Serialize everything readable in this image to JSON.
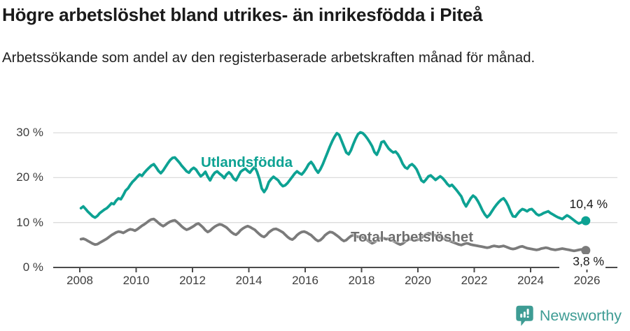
{
  "header": {
    "title": "Högre arbetslöshet bland utrikes- än inrikesfödda i Piteå",
    "subtitle": "Arbetssökande som andel av den registerbaserade arbetskraften månad för månad."
  },
  "footer": {
    "brand": "Newsworthy",
    "brand_color": "#3E9C94",
    "logo_icon": "bar-chart-speech-bubble"
  },
  "chart_data": {
    "type": "line",
    "title": "Högre arbetslöshet bland utrikes- än inrikesfödda i Piteå",
    "subtitle": "Arbetssökande som andel av den registerbaserade arbetskraften månad för månad.",
    "xlabel": "",
    "ylabel": "",
    "grid": "horizontal",
    "legend_position": "inline-labels-on-lines",
    "x_start_year": 2008,
    "frequency": "monthly",
    "xlim": [
      2007.1,
      2027.1
    ],
    "ylim": [
      0,
      32
    ],
    "x_ticks": [
      2008,
      2010,
      2012,
      2014,
      2016,
      2018,
      2020,
      2022,
      2024,
      2026
    ],
    "y_ticks": [
      {
        "value": 0,
        "label": "0 %"
      },
      {
        "value": 10,
        "label": "10 %"
      },
      {
        "value": 20,
        "label": "20 %"
      },
      {
        "value": 30,
        "label": "30 %"
      }
    ],
    "series": [
      {
        "id": "utlandsfodda",
        "name": "Utlandsfödda",
        "color": "#0da293",
        "end_label": "10,4 %",
        "end_value": 10.4,
        "values": [
          13.2,
          13.6,
          13.0,
          12.4,
          11.9,
          11.4,
          11.1,
          11.5,
          12.1,
          12.5,
          12.9,
          13.2,
          13.7,
          14.3,
          14.1,
          14.9,
          15.4,
          15.2,
          16.1,
          17.1,
          17.6,
          18.4,
          19.1,
          19.6,
          20.2,
          20.7,
          20.4,
          21.1,
          21.7,
          22.2,
          22.7,
          23.0,
          22.3,
          21.5,
          21.0,
          21.6,
          22.4,
          23.2,
          23.9,
          24.4,
          24.5,
          23.9,
          23.3,
          22.6,
          22.0,
          21.4,
          21.1,
          21.8,
          22.2,
          21.8,
          21.0,
          20.3,
          20.7,
          21.3,
          20.2,
          19.4,
          20.4,
          21.1,
          21.4,
          20.9,
          20.5,
          19.9,
          20.7,
          21.2,
          20.7,
          19.8,
          19.4,
          20.3,
          21.3,
          21.7,
          22.0,
          21.5,
          21.1,
          21.8,
          22.4,
          21.3,
          19.7,
          17.6,
          16.8,
          17.6,
          19.0,
          19.7,
          20.2,
          19.8,
          19.4,
          18.6,
          18.1,
          18.3,
          18.8,
          19.5,
          20.2,
          20.9,
          21.4,
          21.0,
          20.7,
          21.3,
          22.1,
          23.0,
          23.5,
          22.8,
          21.8,
          21.1,
          21.9,
          23.0,
          24.3,
          25.6,
          26.9,
          28.1,
          29.1,
          29.9,
          29.5,
          28.2,
          26.9,
          25.6,
          25.2,
          26.1,
          27.5,
          28.7,
          29.7,
          30.1,
          29.9,
          29.4,
          28.7,
          27.9,
          27.0,
          25.7,
          25.1,
          26.3,
          27.9,
          28.1,
          27.3,
          26.5,
          26.0,
          25.6,
          25.8,
          25.2,
          24.3,
          23.1,
          22.3,
          22.0,
          22.7,
          23.0,
          22.5,
          21.8,
          20.6,
          19.4,
          19.0,
          19.6,
          20.3,
          20.5,
          20.0,
          19.5,
          19.9,
          20.3,
          19.9,
          19.3,
          18.6,
          18.1,
          18.4,
          17.8,
          17.2,
          16.5,
          15.8,
          14.5,
          13.6,
          14.5,
          15.4,
          16.0,
          15.6,
          14.8,
          13.8,
          12.7,
          11.8,
          11.2,
          11.7,
          12.5,
          13.3,
          14.0,
          14.6,
          15.1,
          15.4,
          14.7,
          13.7,
          12.4,
          11.4,
          11.3,
          12.0,
          12.6,
          13.0,
          12.8,
          12.5,
          12.9,
          13.0,
          12.5,
          11.9,
          11.6,
          11.8,
          12.1,
          12.3,
          12.5,
          12.1,
          11.8,
          11.5,
          11.2,
          11.0,
          10.8,
          11.2,
          11.6,
          11.3,
          10.9,
          10.5,
          10.1,
          9.8,
          10.0,
          10.2,
          10.4
        ]
      },
      {
        "id": "total",
        "name": "Total arbetslöshet",
        "color": "#7b7b7b",
        "end_label": "3,8 %",
        "end_value": 3.8,
        "values": [
          6.3,
          6.4,
          6.2,
          5.9,
          5.6,
          5.3,
          5.1,
          5.2,
          5.5,
          5.8,
          6.1,
          6.4,
          6.8,
          7.2,
          7.5,
          7.8,
          8.0,
          7.9,
          7.7,
          8.0,
          8.3,
          8.5,
          8.4,
          8.2,
          8.5,
          8.9,
          9.3,
          9.6,
          10.0,
          10.4,
          10.7,
          10.8,
          10.4,
          9.9,
          9.5,
          9.2,
          9.5,
          9.9,
          10.2,
          10.4,
          10.5,
          10.1,
          9.6,
          9.1,
          8.7,
          8.4,
          8.6,
          8.9,
          9.2,
          9.6,
          9.8,
          9.4,
          8.9,
          8.3,
          7.9,
          8.2,
          8.7,
          9.1,
          9.4,
          9.6,
          9.5,
          9.2,
          8.9,
          8.4,
          7.9,
          7.5,
          7.3,
          7.7,
          8.3,
          8.7,
          9.0,
          9.2,
          9.0,
          8.7,
          8.4,
          7.9,
          7.4,
          7.0,
          6.8,
          7.2,
          7.8,
          8.2,
          8.5,
          8.6,
          8.4,
          8.1,
          7.8,
          7.3,
          6.8,
          6.4,
          6.2,
          6.6,
          7.2,
          7.6,
          7.9,
          8.0,
          7.8,
          7.5,
          7.2,
          6.7,
          6.2,
          5.9,
          6.1,
          6.6,
          7.2,
          7.6,
          7.9,
          7.8,
          7.5,
          7.1,
          6.7,
          6.2,
          5.9,
          6.1,
          6.6,
          7.0,
          7.2,
          7.0,
          6.8,
          6.9,
          6.7,
          6.4,
          6.1,
          5.7,
          5.4,
          5.6,
          6.0,
          6.4,
          6.6,
          6.5,
          6.3,
          6.4,
          6.2,
          5.9,
          5.6,
          5.3,
          5.1,
          5.3,
          5.7,
          6.1,
          6.3,
          6.2,
          6.0,
          6.1,
          6.3,
          6.6,
          7.0,
          7.4,
          7.6,
          7.5,
          7.3,
          7.1,
          6.9,
          6.7,
          6.5,
          6.3,
          6.1,
          5.9,
          5.7,
          5.5,
          5.3,
          5.1,
          5.0,
          5.2,
          5.4,
          5.3,
          5.1,
          5.0,
          4.9,
          4.8,
          4.7,
          4.6,
          4.5,
          4.4,
          4.5,
          4.7,
          4.8,
          4.7,
          4.6,
          4.7,
          4.8,
          4.6,
          4.4,
          4.2,
          4.1,
          4.2,
          4.4,
          4.6,
          4.7,
          4.5,
          4.3,
          4.2,
          4.1,
          4.0,
          3.9,
          4.0,
          4.2,
          4.3,
          4.4,
          4.3,
          4.1,
          4.0,
          3.9,
          4.0,
          4.1,
          4.2,
          4.1,
          4.0,
          3.9,
          3.8,
          3.7,
          3.8,
          3.9,
          4.0,
          3.9,
          3.8
        ]
      }
    ]
  }
}
